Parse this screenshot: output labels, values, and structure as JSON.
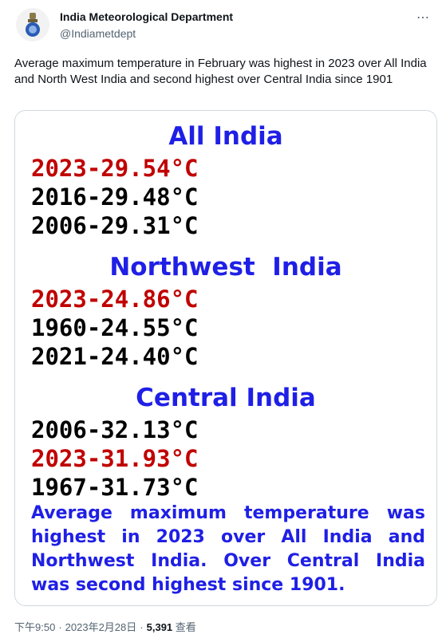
{
  "header": {
    "name": "India Meteorological Department",
    "handle": "@Indiametdept"
  },
  "tweet": {
    "text": "Average maximum temperature in February was highest in 2023 over All India and North West India and second highest over Central India since 1901"
  },
  "image": {
    "sections": [
      {
        "title": "All India",
        "entries": [
          {
            "text": "2023-29.54°C",
            "color": "#c00000"
          },
          {
            "text": "2016-29.48°C",
            "color": "#000000"
          },
          {
            "text": "2006-29.31°C",
            "color": "#000000"
          }
        ]
      },
      {
        "title": "Northwest  India",
        "entries": [
          {
            "text": "2023-24.86°C",
            "color": "#c00000"
          },
          {
            "text": "1960-24.55°C",
            "color": "#000000"
          },
          {
            "text": "2021-24.40°C",
            "color": "#000000"
          }
        ]
      },
      {
        "title": "Central India",
        "entries": [
          {
            "text": "2006-32.13°C",
            "color": "#000000"
          },
          {
            "text": "2023-31.93°C",
            "color": "#c00000"
          },
          {
            "text": "1967-31.73°C",
            "color": "#000000"
          }
        ]
      }
    ],
    "summary": "Average maximum temperature was highest in 2023 over All India and Northwest India. Over Central India was second highest since 1901."
  },
  "footer": {
    "time": "下午9:50",
    "date": "2023年2月28日",
    "views": "5,391",
    "views_label": "查看"
  }
}
